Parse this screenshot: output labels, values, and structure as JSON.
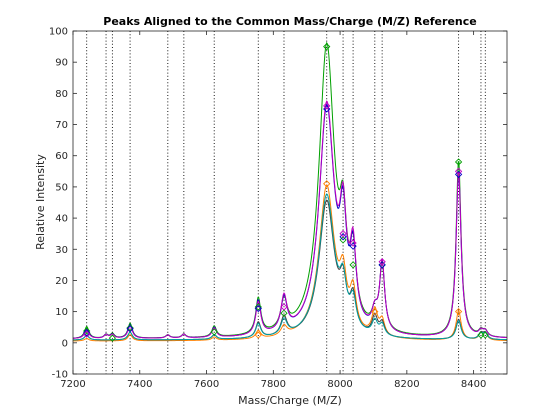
{
  "chart_data": {
    "type": "line",
    "title": "Peaks Aligned to the Common Mass/Charge (M/Z) Reference",
    "xlabel": "Mass/Charge (M/Z)",
    "ylabel": "Relative Intensity",
    "xlim": [
      7200,
      8500
    ],
    "ylim": [
      -10,
      100
    ],
    "xticks": [
      7200,
      7400,
      7600,
      7800,
      8000,
      8200,
      8400
    ],
    "yticks": [
      -10,
      0,
      10,
      20,
      30,
      40,
      50,
      60,
      70,
      80,
      90,
      100
    ],
    "grid": false,
    "box": true,
    "reference_peaks": [
      7241,
      7299,
      7318,
      7371,
      7484,
      7532,
      7623,
      7755,
      7832,
      7960,
      8009,
      8039,
      8104,
      8126,
      8355,
      8422,
      8435
    ],
    "series": [
      {
        "color": "#00A000",
        "baseline": 1.2,
        "peaks": [
          [
            7241,
            3.8,
            8
          ],
          [
            7299,
            1.2,
            7
          ],
          [
            7318,
            1.5,
            7
          ],
          [
            7371,
            4.8,
            8
          ],
          [
            7484,
            1.0,
            7
          ],
          [
            7532,
            1.2,
            7
          ],
          [
            7623,
            3.5,
            8
          ],
          [
            7755,
            11.5,
            9
          ],
          [
            7832,
            9.5,
            11
          ],
          [
            7960,
            93.0,
            28
          ],
          [
            8009,
            25.0,
            12
          ],
          [
            8039,
            20.0,
            11
          ],
          [
            8104,
            5.0,
            10
          ],
          [
            8126,
            21.0,
            9
          ],
          [
            8355,
            57.0,
            9
          ],
          [
            8422,
            1.8,
            8
          ],
          [
            8435,
            1.8,
            8
          ]
        ],
        "markers": [
          [
            7241,
            3.8
          ],
          [
            7318,
            1.5
          ],
          [
            7371,
            4.8
          ],
          [
            7623,
            3.5
          ],
          [
            7755,
            11.5
          ],
          [
            7832,
            9.5
          ],
          [
            7960,
            95.0
          ],
          [
            8009,
            33.0
          ],
          [
            8039,
            25.0
          ],
          [
            8126,
            25.0
          ],
          [
            8355,
            58.0
          ],
          [
            8422,
            2.5
          ],
          [
            8435,
            2.5
          ]
        ]
      },
      {
        "color": "#0000C8",
        "baseline": 1.2,
        "peaks": [
          [
            7241,
            3.2,
            8
          ],
          [
            7299,
            1.2,
            7
          ],
          [
            7318,
            1.3,
            7
          ],
          [
            7371,
            4.5,
            8
          ],
          [
            7484,
            1.0,
            7
          ],
          [
            7532,
            1.2,
            7
          ],
          [
            7623,
            3.2,
            8
          ],
          [
            7755,
            11.0,
            9
          ],
          [
            7832,
            10.5,
            11
          ],
          [
            7960,
            73.0,
            28
          ],
          [
            8009,
            28.0,
            12
          ],
          [
            8039,
            22.0,
            11
          ],
          [
            8104,
            5.5,
            10
          ],
          [
            8126,
            22.0,
            9
          ],
          [
            8355,
            53.0,
            9
          ],
          [
            8422,
            1.8,
            8
          ],
          [
            8435,
            1.8,
            8
          ]
        ],
        "markers": [
          [
            7241,
            3.2
          ],
          [
            7371,
            4.5
          ],
          [
            7755,
            11.0
          ],
          [
            7960,
            75.0
          ],
          [
            8009,
            34.0
          ],
          [
            8039,
            31.0
          ],
          [
            8126,
            25.0
          ],
          [
            8355,
            54.0
          ]
        ]
      },
      {
        "color": "#C000C0",
        "baseline": 1.2,
        "peaks": [
          [
            7241,
            2.8,
            8
          ],
          [
            7299,
            1.2,
            7
          ],
          [
            7318,
            1.2,
            7
          ],
          [
            7371,
            4.0,
            8
          ],
          [
            7484,
            1.0,
            7
          ],
          [
            7532,
            1.2,
            7
          ],
          [
            7623,
            3.0,
            8
          ],
          [
            7755,
            10.5,
            9
          ],
          [
            7832,
            11.0,
            11
          ],
          [
            7960,
            74.0,
            28
          ],
          [
            8009,
            29.0,
            12
          ],
          [
            8039,
            23.0,
            11
          ],
          [
            8104,
            5.5,
            10
          ],
          [
            8126,
            22.0,
            9
          ],
          [
            8355,
            53.5,
            9
          ],
          [
            8422,
            1.8,
            8
          ],
          [
            8435,
            1.8,
            8
          ]
        ],
        "markers": [
          [
            7241,
            2.8
          ],
          [
            7832,
            11.5
          ],
          [
            7960,
            76.0
          ],
          [
            8009,
            35.0
          ],
          [
            8039,
            32.0
          ],
          [
            8126,
            26.0
          ],
          [
            8355,
            55.0
          ]
        ]
      },
      {
        "color": "#FF8000",
        "baseline": 0.5,
        "peaks": [
          [
            7241,
            0.8,
            8
          ],
          [
            7371,
            2.0,
            8
          ],
          [
            7623,
            1.0,
            8
          ],
          [
            7755,
            2.5,
            9
          ],
          [
            7832,
            3.0,
            11
          ],
          [
            7960,
            49.0,
            28
          ],
          [
            8009,
            14.0,
            12
          ],
          [
            8039,
            12.0,
            11
          ],
          [
            8104,
            8.0,
            10
          ],
          [
            8126,
            5.0,
            9
          ],
          [
            8355,
            9.5,
            9
          ],
          [
            8422,
            2.0,
            8
          ],
          [
            8435,
            2.0,
            8
          ]
        ],
        "markers": [
          [
            7755,
            2.5
          ],
          [
            7960,
            51.0
          ],
          [
            8104,
            10.0
          ],
          [
            8355,
            10.0
          ]
        ]
      },
      {
        "color": "#404040",
        "baseline": 0.8,
        "peaks": [
          [
            7241,
            1.5,
            8
          ],
          [
            7371,
            2.5,
            8
          ],
          [
            7623,
            1.5,
            8
          ],
          [
            7755,
            5.0,
            9
          ],
          [
            7832,
            6.0,
            11
          ],
          [
            7960,
            44.0,
            28
          ],
          [
            8009,
            12.0,
            12
          ],
          [
            8039,
            10.0,
            11
          ],
          [
            8104,
            6.0,
            10
          ],
          [
            8126,
            4.0,
            9
          ],
          [
            8355,
            6.5,
            9
          ],
          [
            8422,
            2.0,
            8
          ],
          [
            8435,
            2.0,
            8
          ]
        ],
        "markers": []
      },
      {
        "color": "#00A0A0",
        "baseline": 0.8,
        "peaks": [
          [
            7241,
            1.5,
            8
          ],
          [
            7371,
            2.5,
            8
          ],
          [
            7623,
            1.5,
            8
          ],
          [
            7755,
            4.5,
            9
          ],
          [
            7832,
            5.0,
            11
          ],
          [
            7960,
            46.0,
            28
          ],
          [
            8009,
            12.0,
            12
          ],
          [
            8039,
            9.0,
            11
          ],
          [
            8104,
            4.5,
            10
          ],
          [
            8126,
            3.5,
            9
          ],
          [
            8355,
            6.0,
            9
          ],
          [
            8422,
            1.8,
            8
          ],
          [
            8435,
            1.8,
            8
          ]
        ],
        "markers": []
      }
    ]
  }
}
